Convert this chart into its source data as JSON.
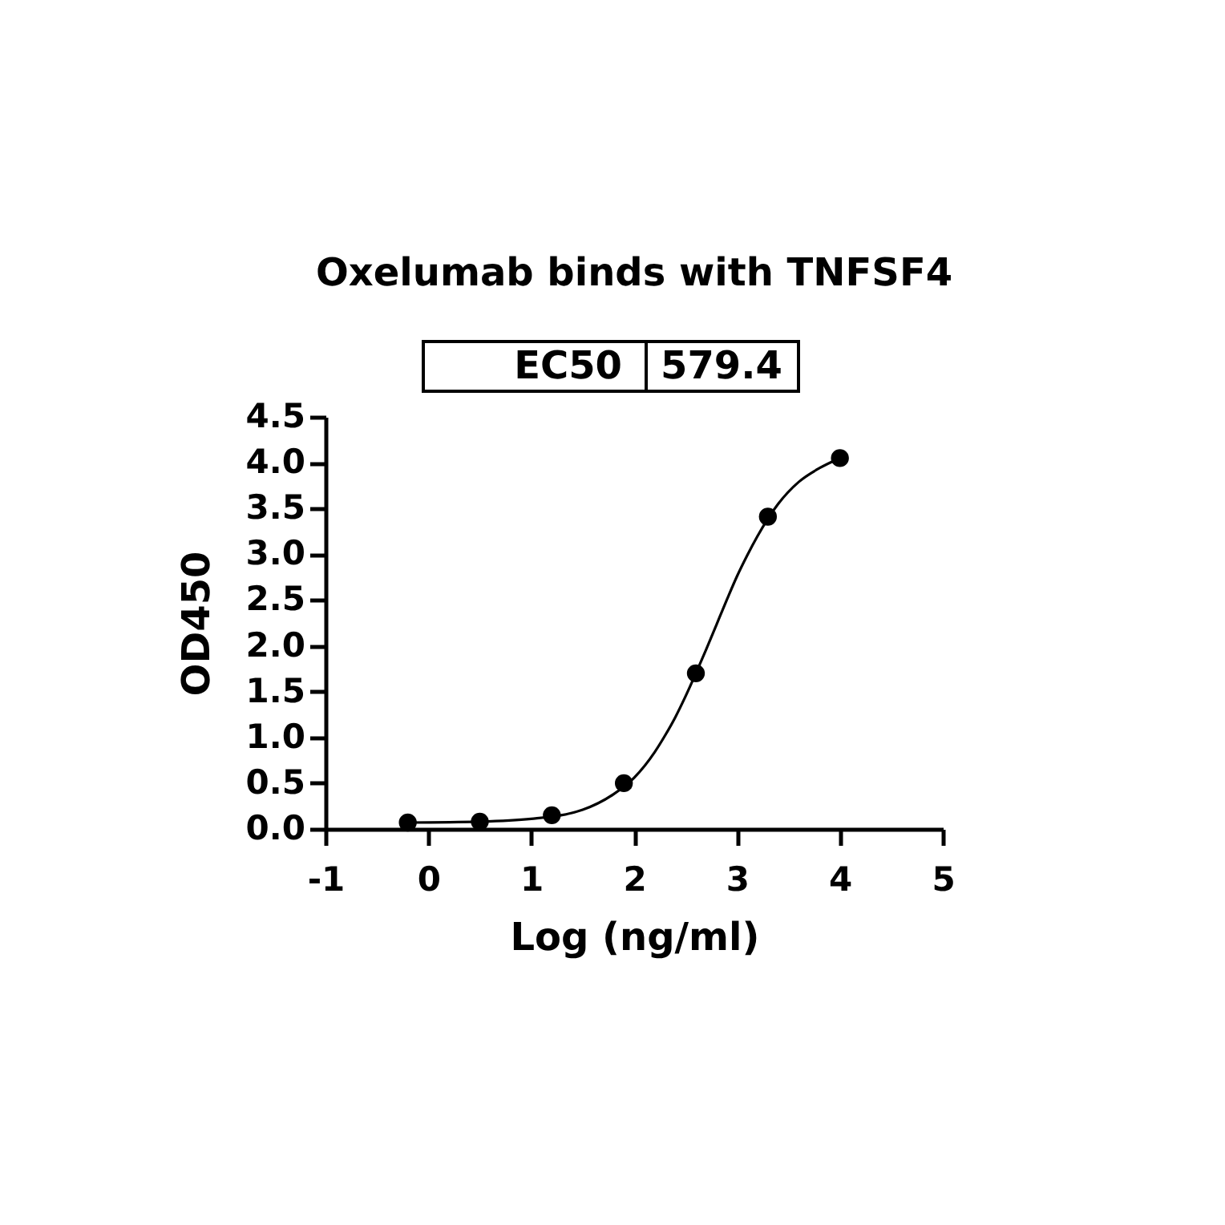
{
  "chart_data": {
    "type": "scatter",
    "title": "Oxelumab binds with TNFSF4",
    "xlabel": "Log (ng/ml)",
    "ylabel": "OD450",
    "annotations": [
      "EC50",
      "579.4"
    ],
    "x": [
      -0.2,
      0.5,
      1.2,
      1.9,
      2.6,
      3.3,
      4.0
    ],
    "series": [
      {
        "color": "#000000",
        "marker": "circle",
        "values": [
          0.07,
          0.08,
          0.15,
          0.5,
          1.7,
          3.41,
          4.05
        ]
      },
      {
        "type": "line",
        "color": "#000000",
        "line_style": "solid",
        "x": [
          -0.2,
          0.5,
          1.0,
          1.5,
          1.8,
          2.0,
          2.2,
          2.3,
          2.4,
          2.5,
          2.6,
          2.7,
          2.8,
          2.9,
          3.0,
          3.1,
          3.2,
          3.4,
          3.6,
          3.8,
          4.0
        ],
        "values": [
          0.07,
          0.08,
          0.11,
          0.21,
          0.38,
          0.56,
          0.84,
          1.02,
          1.22,
          1.45,
          1.7,
          1.96,
          2.23,
          2.5,
          2.76,
          2.99,
          3.2,
          3.55,
          3.79,
          3.94,
          4.05
        ]
      }
    ],
    "xlim": [
      -1,
      5
    ],
    "xticks": [
      -1,
      0,
      1,
      2,
      3,
      4,
      5
    ],
    "ylim": [
      0,
      4.5
    ],
    "yticks": [
      {
        "value": 0,
        "label": "0.0"
      },
      0.5,
      {
        "value": 1,
        "label": "1.0"
      },
      1.5,
      {
        "value": 2,
        "label": "2.0"
      },
      2.5,
      {
        "value": 3,
        "label": "3.0"
      },
      3.5,
      {
        "value": 4,
        "label": "4.0"
      },
      4.5
    ]
  }
}
